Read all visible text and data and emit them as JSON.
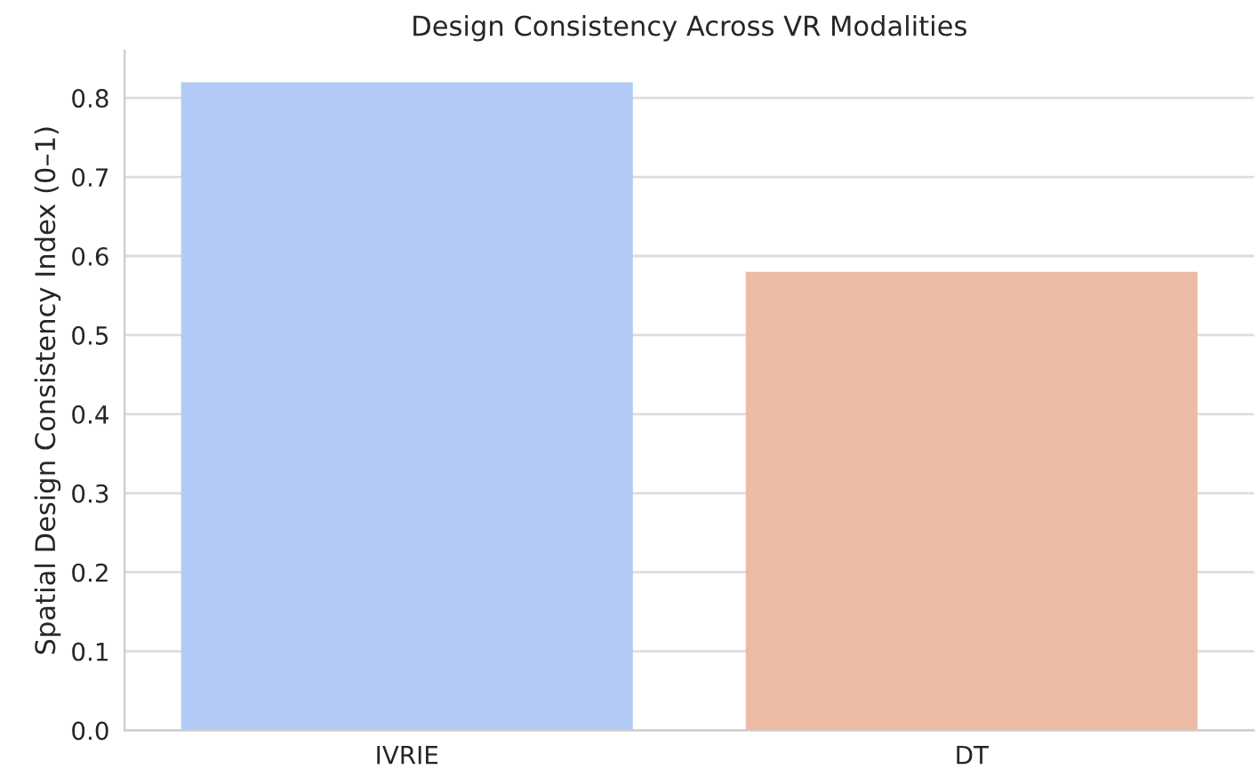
{
  "chart_data": {
    "type": "bar",
    "title": "Design Consistency Across VR Modalities",
    "ylabel": "Spatial Design Consistency Index (0–1)",
    "categories": [
      "IVRIE",
      "DT"
    ],
    "values": [
      0.82,
      0.58
    ],
    "colors": [
      "#b3cbf4",
      "#ecbba5"
    ],
    "ylim": [
      0,
      0.86
    ],
    "yticks": [
      {
        "value": 0,
        "label": "0.0"
      },
      0.1,
      0.2,
      0.3,
      0.4,
      0.5,
      0.6,
      0.7,
      0.8
    ],
    "grid": "y"
  }
}
